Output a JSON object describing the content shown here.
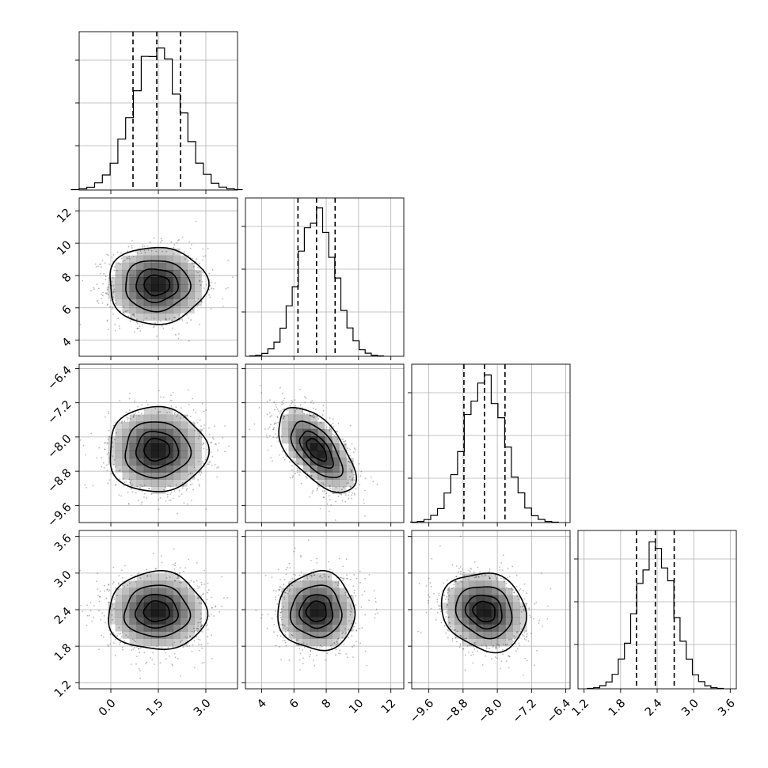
{
  "chart_data": {
    "type": "corner",
    "parameters": 4,
    "axes": [
      {
        "range": [
          -1.0,
          4.0
        ],
        "ticks": [
          0.0,
          1.5,
          3.0
        ],
        "tick_labels": [
          "0.0",
          "1.5",
          "3.0"
        ]
      },
      {
        "range": [
          3.0,
          12.8
        ],
        "ticks": [
          4,
          6,
          8,
          10,
          12
        ],
        "tick_labels": [
          "4",
          "6",
          "8",
          "10",
          "12"
        ]
      },
      {
        "range": [
          -10.0,
          -6.3
        ],
        "ticks": [
          -9.6,
          -8.8,
          -8.0,
          -7.2,
          -6.4
        ],
        "tick_labels": [
          "−9.6",
          "−8.8",
          "−8.0",
          "−7.2",
          "−6.4"
        ]
      },
      {
        "range": [
          1.1,
          3.7
        ],
        "ticks": [
          1.2,
          1.8,
          2.4,
          3.0,
          3.6
        ],
        "tick_labels": [
          "1.2",
          "1.8",
          "2.4",
          "3.0",
          "3.6"
        ]
      }
    ],
    "marginals": [
      {
        "param": 0,
        "mean": 1.45,
        "sd": 0.75,
        "quantiles": [
          0.7,
          1.45,
          2.2
        ]
      },
      {
        "param": 1,
        "mean": 7.4,
        "sd": 1.15,
        "quantiles": [
          6.25,
          7.4,
          8.55
        ]
      },
      {
        "param": 2,
        "mean": -8.3,
        "sd": 0.48,
        "quantiles": [
          -8.78,
          -8.3,
          -7.82
        ]
      },
      {
        "param": 3,
        "mean": 2.37,
        "sd": 0.31,
        "quantiles": [
          2.06,
          2.37,
          2.68
        ]
      }
    ],
    "correlations": [
      {
        "pair": [
          1,
          0
        ],
        "rho": 0.0
      },
      {
        "pair": [
          2,
          0
        ],
        "rho": 0.0
      },
      {
        "pair": [
          2,
          1
        ],
        "rho": -0.6
      },
      {
        "pair": [
          3,
          0
        ],
        "rho": 0.0
      },
      {
        "pair": [
          3,
          1
        ],
        "rho": 0.0
      },
      {
        "pair": [
          3,
          2
        ],
        "rho": -0.15
      }
    ],
    "contour_levels_sigma": [
      0.5,
      1.0,
      1.5,
      2.0
    ],
    "grid": true,
    "title": "",
    "xlabel": "",
    "ylabel": ""
  }
}
